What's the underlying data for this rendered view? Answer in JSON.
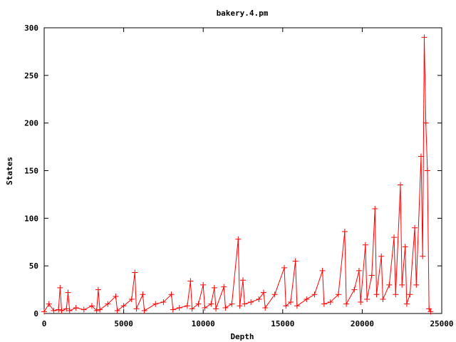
{
  "chart_data": {
    "type": "line",
    "title": "bakery.4.pm",
    "x_label": "Depth",
    "y_label": "States",
    "x": [
      0,
      300,
      600,
      900,
      1000,
      1100,
      1400,
      1500,
      1600,
      2000,
      2500,
      3000,
      3300,
      3400,
      3500,
      4000,
      4500,
      4600,
      5000,
      5500,
      5700,
      5800,
      6200,
      6300,
      7000,
      7500,
      8000,
      8100,
      8500,
      9000,
      9200,
      9300,
      9700,
      10000,
      10100,
      10500,
      10700,
      10800,
      11300,
      11400,
      11800,
      12200,
      12300,
      12500,
      12600,
      13000,
      13500,
      13800,
      13900,
      14500,
      15100,
      15200,
      15500,
      15800,
      15900,
      16500,
      17000,
      17500,
      17600,
      18000,
      18500,
      18900,
      19000,
      19500,
      19800,
      19900,
      20200,
      20300,
      20600,
      20800,
      20900,
      21200,
      21300,
      21700,
      22000,
      22100,
      22400,
      22500,
      22700,
      22800,
      23000,
      23300,
      23400,
      23700,
      23800,
      23900,
      24000,
      24100,
      24200,
      24300
    ],
    "series": [
      {
        "name": "States",
        "color": "#ff0000",
        "values": [
          2,
          10,
          3,
          4,
          27,
          3,
          5,
          22,
          3,
          6,
          4,
          8,
          3,
          25,
          4,
          10,
          18,
          3,
          8,
          15,
          43,
          5,
          20,
          3,
          10,
          12,
          20,
          4,
          6,
          8,
          34,
          5,
          10,
          30,
          6,
          10,
          27,
          5,
          28,
          6,
          10,
          78,
          8,
          35,
          10,
          12,
          15,
          22,
          6,
          20,
          48,
          8,
          12,
          55,
          8,
          15,
          20,
          45,
          10,
          12,
          20,
          86,
          10,
          25,
          45,
          12,
          72,
          15,
          40,
          110,
          20,
          60,
          15,
          30,
          80,
          20,
          135,
          30,
          70,
          10,
          20,
          90,
          30,
          165,
          60,
          290,
          200,
          150,
          5,
          2
        ]
      }
    ],
    "xlim": [
      0,
      25000
    ],
    "ylim": [
      0,
      300
    ],
    "xticks": [
      0,
      5000,
      10000,
      15000,
      20000,
      25000
    ],
    "yticks": [
      0,
      50,
      100,
      150,
      200,
      250,
      300
    ]
  }
}
